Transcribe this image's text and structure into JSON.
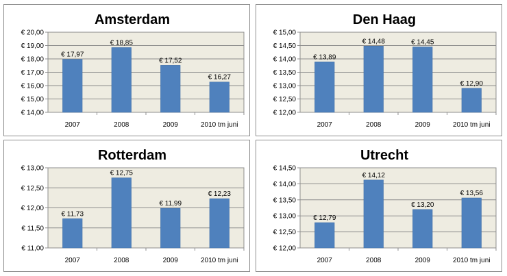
{
  "colors": {
    "bar": "#4f81bd",
    "bar_edge": "#3a6aa5",
    "plot_background": "#eeece1",
    "gridline": "#8c8c8c",
    "panel_border": "#8c8c8c"
  },
  "chart_data": [
    {
      "type": "bar",
      "title": "Amsterdam",
      "categories": [
        "2007",
        "2008",
        "2009",
        "2010 tm juni"
      ],
      "values": [
        17.97,
        18.85,
        17.52,
        16.27
      ],
      "data_labels": [
        "€ 17,97",
        "€ 18,85",
        "€ 17,52",
        "€ 16,27"
      ],
      "ylim": [
        14,
        20
      ],
      "yticks": [
        14,
        15,
        16,
        17,
        18,
        19,
        20
      ],
      "ytick_labels": [
        "€ 14,00",
        "€ 15,00",
        "€ 16,00",
        "€ 17,00",
        "€ 18,00",
        "€ 19,00",
        "€ 20,00"
      ],
      "grid": true,
      "legend": "none"
    },
    {
      "type": "bar",
      "title": "Den Haag",
      "categories": [
        "2007",
        "2008",
        "2009",
        "2010 tm juni"
      ],
      "values": [
        13.89,
        14.48,
        14.45,
        12.9
      ],
      "data_labels": [
        "€ 13,89",
        "€ 14,48",
        "€ 14,45",
        "€ 12,90"
      ],
      "ylim": [
        12,
        15
      ],
      "yticks": [
        12,
        12.5,
        13,
        13.5,
        14,
        14.5,
        15
      ],
      "ytick_labels": [
        "€ 12,00",
        "€ 12,50",
        "€ 13,00",
        "€ 13,50",
        "€ 14,00",
        "€ 14,50",
        "€ 15,00"
      ],
      "grid": true,
      "legend": "none"
    },
    {
      "type": "bar",
      "title": "Rotterdam",
      "categories": [
        "2007",
        "2008",
        "2009",
        "2010 tm juni"
      ],
      "values": [
        11.73,
        12.75,
        11.99,
        12.23
      ],
      "data_labels": [
        "€ 11,73",
        "€ 12,75",
        "€ 11,99",
        "€ 12,23"
      ],
      "ylim": [
        11,
        13
      ],
      "yticks": [
        11,
        11.5,
        12,
        12.5,
        13
      ],
      "ytick_labels": [
        "€ 11,00",
        "€ 11,50",
        "€ 12,00",
        "€ 12,50",
        "€ 13,00"
      ],
      "grid": true,
      "legend": "none"
    },
    {
      "type": "bar",
      "title": "Utrecht",
      "categories": [
        "2007",
        "2008",
        "2009",
        "2010 tm juni"
      ],
      "values": [
        12.79,
        14.12,
        13.2,
        13.56
      ],
      "data_labels": [
        "€ 12,79",
        "€ 14,12",
        "€ 13,20",
        "€ 13,56"
      ],
      "ylim": [
        12,
        14.5
      ],
      "yticks": [
        12,
        12.5,
        13,
        13.5,
        14,
        14.5
      ],
      "ytick_labels": [
        "€ 12,00",
        "€ 12,50",
        "€ 13,00",
        "€ 13,50",
        "€ 14,00",
        "€ 14,50"
      ],
      "grid": true,
      "legend": "none"
    }
  ]
}
